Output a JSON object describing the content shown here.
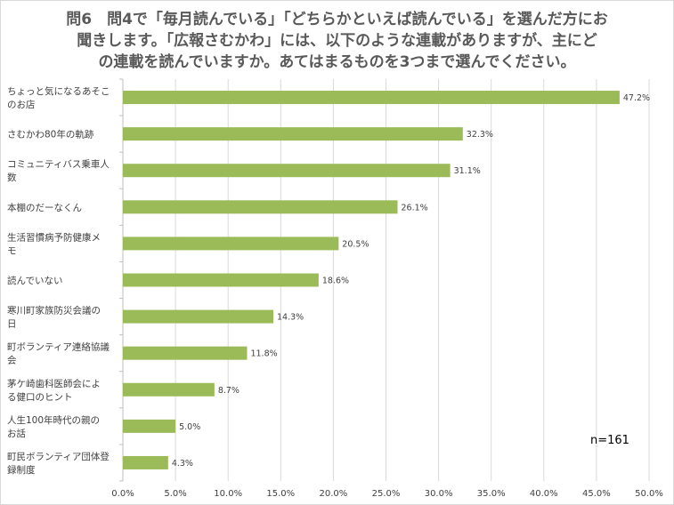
{
  "title_lines": [
    "問6　問4で「毎月読んでいる」「どちらかといえば読んでいる」を選んだ方にお",
    "聞きします。「広報さむかわ」には、以下のような連載がありますが、主にど",
    "の連載を読んでいますか。あてはまるものを3つまで選んでください。"
  ],
  "note": "n=161",
  "colors": {
    "bar": "#9bbb59",
    "grid": "#d9d9d9",
    "text": "#404040"
  },
  "chart_data": {
    "type": "bar",
    "orientation": "horizontal",
    "categories": [
      [
        "ちょっと気になるあそこ",
        "のお店"
      ],
      [
        "さむかわ80年の軌跡"
      ],
      [
        "コミュニティバス乗車人",
        "数"
      ],
      [
        "本棚のだーなくん"
      ],
      [
        "生活習慣病予防健康メ",
        "モ"
      ],
      [
        "読んでいない"
      ],
      [
        "寒川町家族防災会議の",
        "日"
      ],
      [
        "町ボランティア連絡協議",
        "会"
      ],
      [
        "茅ケ崎歯科医師会によ",
        "る健口のヒント"
      ],
      [
        "人生100年時代の親の",
        "お話"
      ],
      [
        "町民ボランティア団体登",
        "録制度"
      ]
    ],
    "values": [
      47.2,
      32.3,
      31.1,
      26.1,
      20.5,
      18.6,
      14.3,
      11.8,
      8.7,
      5.0,
      4.3
    ],
    "value_labels": [
      "47.2%",
      "32.3%",
      "31.1%",
      "26.1%",
      "20.5%",
      "18.6%",
      "14.3%",
      "11.8%",
      "8.7%",
      "5.0%",
      "4.3%"
    ],
    "xlim": [
      0,
      50
    ],
    "xticks": [
      "0.0%",
      "5.0%",
      "10.0%",
      "15.0%",
      "20.0%",
      "25.0%",
      "30.0%",
      "35.0%",
      "40.0%",
      "45.0%",
      "50.0%"
    ],
    "grid": true
  }
}
